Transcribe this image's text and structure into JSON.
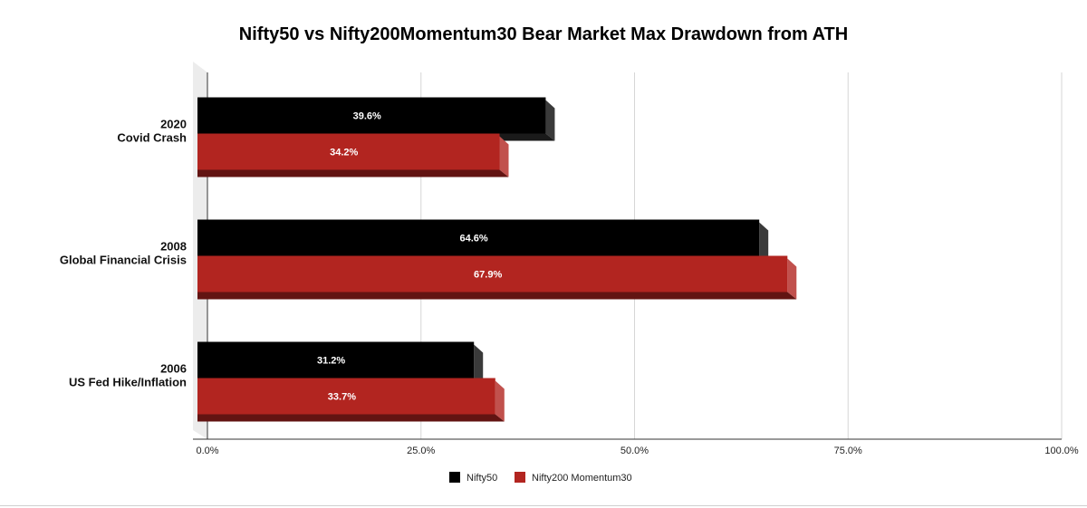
{
  "chart_data": {
    "type": "bar",
    "orientation": "horizontal",
    "title": "Nifty50 vs Nifty200Momentum30 Bear Market Max Drawdown from ATH",
    "categories": [
      [
        "2020",
        "Covid Crash"
      ],
      [
        "2008",
        "Global Financial Crisis"
      ],
      [
        "2006",
        "US Fed Hike/Inflation"
      ]
    ],
    "series": [
      {
        "name": "Nifty50",
        "color": "#000000",
        "values": [
          39.6,
          64.6,
          31.2
        ],
        "labels": [
          "39.6%",
          "64.6%",
          "31.2%"
        ]
      },
      {
        "name": "Nifty200 Momentum30",
        "color": "#b22520",
        "values": [
          34.2,
          67.9,
          33.7
        ],
        "labels": [
          "34.2%",
          "67.9%",
          "33.7%"
        ]
      }
    ],
    "xlim": [
      0,
      100
    ],
    "xticks": [
      0,
      25,
      50,
      75,
      100
    ],
    "xtick_labels": [
      "0.0%",
      "25.0%",
      "50.0%",
      "75.0%",
      "100.0%"
    ],
    "grid": true,
    "legend_position": "bottom",
    "style": "3d"
  }
}
